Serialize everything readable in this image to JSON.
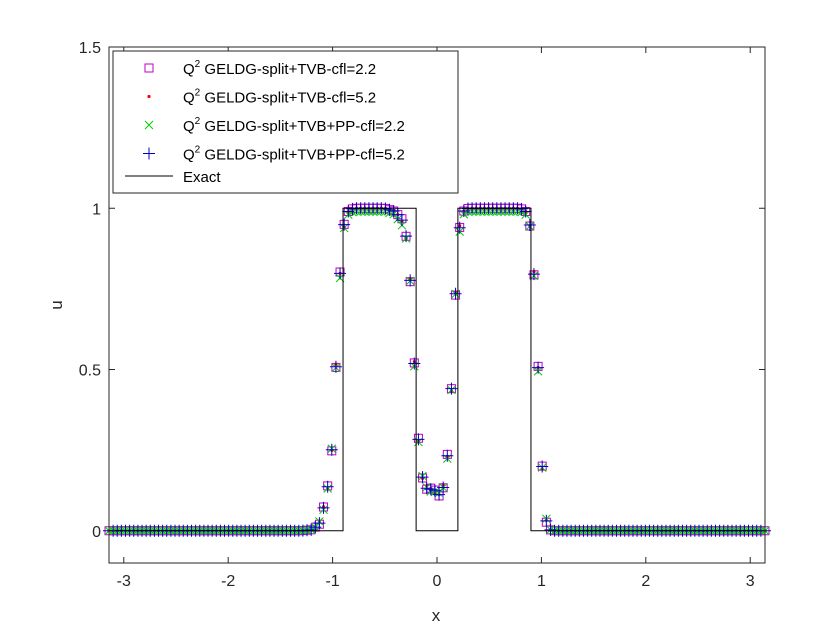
{
  "chart_data": {
    "type": "scatter",
    "xlabel": "x",
    "ylabel": "u",
    "xlim": [
      -3.1416,
      3.1416
    ],
    "ylim": [
      -0.1,
      1.5
    ],
    "xticks": [
      -3,
      -2,
      -1,
      0,
      1,
      2,
      3
    ],
    "xtick_labels": [
      "-3",
      "-2",
      "-1",
      "0",
      "1",
      "2",
      "3"
    ],
    "yticks": [
      0,
      0.5,
      1,
      1.5
    ],
    "ytick_labels": [
      "0",
      "0.5",
      "1",
      "1.5"
    ],
    "grid": false,
    "legend": {
      "placement": "top-left",
      "entries": [
        {
          "prefix": "Q",
          "sup": "2",
          "text": " GELDG-split+TVB-cfl=2.2",
          "marker": "square",
          "color": "#bf00bf"
        },
        {
          "prefix": "Q",
          "sup": "2",
          "text": " GELDG-split+TVB-cfl=5.2",
          "marker": "dot",
          "color": "#ff0000"
        },
        {
          "prefix": "Q",
          "sup": "2",
          "text": " GELDG-split+TVB+PP-cfl=2.2",
          "marker": "x",
          "color": "#00cc00"
        },
        {
          "prefix": "Q",
          "sup": "2",
          "text": " GELDG-split+TVB+PP-cfl=5.2",
          "marker": "plus",
          "color": "#0000cc"
        },
        {
          "prefix": "",
          "sup": "",
          "text": "Exact",
          "marker": "line",
          "color": "#000000"
        }
      ]
    },
    "series": [
      {
        "marker": "square",
        "color": "#bf00bf",
        "offset": 0.012,
        "scale": 1.0
      },
      {
        "marker": "dot",
        "color": "#ff0000",
        "offset": 0.006,
        "scale": 1.0
      },
      {
        "marker": "x",
        "color": "#00cc00",
        "offset": -0.004,
        "scale": 0.99
      },
      {
        "marker": "plus",
        "color": "#0000cc",
        "offset": -0.008,
        "scale": 1.0
      }
    ],
    "numerical_profile": {
      "x": [
        -3.1416,
        -1.3,
        -1.2,
        -1.15,
        -1.1,
        -1.05,
        -1.0,
        -0.98,
        -0.96,
        -0.94,
        -0.92,
        -0.9,
        -0.88,
        -0.85,
        -0.8,
        -0.75,
        -0.7,
        -0.6,
        -0.5,
        -0.4,
        -0.35,
        -0.3,
        -0.27,
        -0.25,
        -0.23,
        -0.21,
        -0.19,
        -0.17,
        -0.15,
        -0.12,
        -0.08,
        -0.04,
        0.0,
        0.04,
        0.08,
        0.12,
        0.14,
        0.16,
        0.18,
        0.2,
        0.22,
        0.25,
        0.3,
        0.4,
        0.6,
        0.8,
        0.85,
        0.88,
        0.9,
        0.92,
        0.94,
        0.96,
        0.98,
        1.0,
        1.02,
        1.04,
        1.06,
        1.08,
        1.1,
        1.2,
        3.1416
      ],
      "u": [
        0.0,
        0.0,
        0.003,
        0.015,
        0.05,
        0.12,
        0.28,
        0.42,
        0.58,
        0.73,
        0.84,
        0.92,
        0.965,
        0.99,
        1.0,
        1.0,
        1.0,
        1.0,
        1.0,
        0.99,
        0.97,
        0.92,
        0.85,
        0.75,
        0.62,
        0.46,
        0.33,
        0.24,
        0.18,
        0.15,
        0.13,
        0.12,
        0.115,
        0.12,
        0.16,
        0.3,
        0.45,
        0.6,
        0.76,
        0.88,
        0.95,
        0.99,
        1.0,
        1.0,
        1.0,
        1.0,
        0.99,
        0.97,
        0.93,
        0.85,
        0.74,
        0.57,
        0.4,
        0.24,
        0.12,
        0.05,
        0.015,
        0.004,
        0.0,
        0.0,
        0.0
      ]
    },
    "sample_x": {
      "start": -3.1416,
      "end": 3.1416,
      "count": 160
    },
    "exact": {
      "x": [
        -3.1416,
        -0.9,
        -0.9,
        -0.2,
        -0.2,
        0.2,
        0.2,
        0.9,
        0.9,
        3.1416
      ],
      "u": [
        0,
        0,
        1,
        1,
        0,
        0,
        1,
        1,
        0,
        0
      ]
    }
  }
}
